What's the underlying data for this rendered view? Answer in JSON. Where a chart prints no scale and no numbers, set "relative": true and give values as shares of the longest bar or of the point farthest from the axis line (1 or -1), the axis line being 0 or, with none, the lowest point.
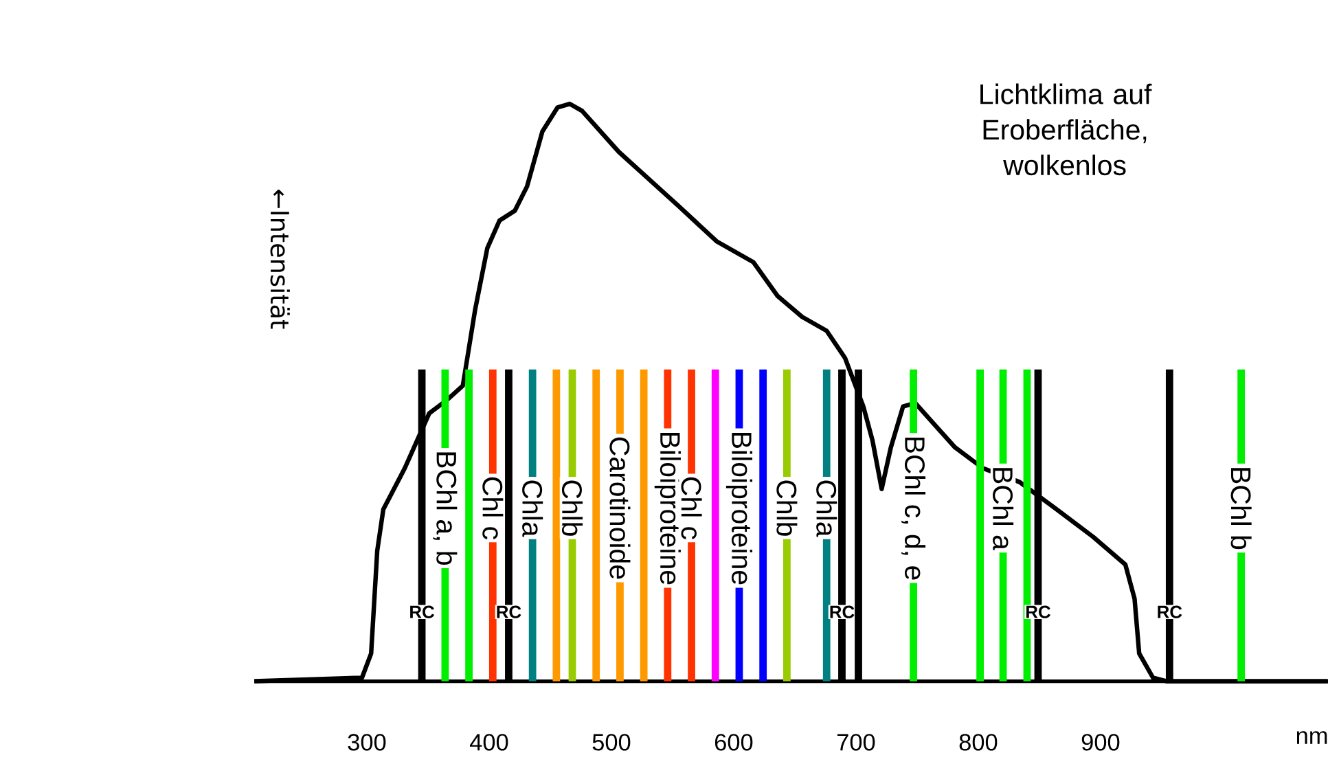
{
  "chart_data": {
    "type": "line",
    "relative": true,
    "title": "Lichtklima auf Eroberfläche, wolkenlos",
    "ylabel": "←Intensität",
    "xlabel": "nm",
    "xlim": [
      208,
      1086
    ],
    "xticks": [
      300,
      400,
      500,
      600,
      700,
      800,
      900
    ],
    "series": [
      {
        "color": "#000000",
        "x": [
          208,
          296,
          303.5,
          308.5,
          313.5,
          331,
          351,
          366,
          378.5,
          388.5,
          398.5,
          408.5,
          421,
          431,
          443.5,
          456,
          466,
          476,
          506,
          531,
          556,
          586,
          616,
          636,
          656,
          676,
          691,
          706,
          713.5,
          721,
          728.5,
          738.5,
          748.5,
          761,
          781,
          803.8,
          833.8,
          863.9,
          894,
          920.3,
          927.8,
          931.6,
          942.9,
          954.2,
          1085.8
        ],
        "values": [
          0,
          0.006,
          0.048,
          0.226,
          0.298,
          0.369,
          0.464,
          0.488,
          0.512,
          0.643,
          0.75,
          0.798,
          0.815,
          0.857,
          0.952,
          0.994,
          1.0,
          0.988,
          0.917,
          0.869,
          0.821,
          0.762,
          0.726,
          0.667,
          0.631,
          0.607,
          0.56,
          0.476,
          0.417,
          0.333,
          0.405,
          0.476,
          0.482,
          0.452,
          0.405,
          0.369,
          0.345,
          0.298,
          0.25,
          0.202,
          0.143,
          0.048,
          0.006,
          0,
          0
        ]
      }
    ],
    "ref_lines": [
      {
        "axis": "x",
        "value": 345,
        "label": "RC",
        "color": "#000000"
      },
      {
        "axis": "x",
        "value": 364,
        "label": "BChl a, b",
        "color": "#00ee00"
      },
      {
        "axis": "x",
        "value": 383.5,
        "color": "#00ee00"
      },
      {
        "axis": "x",
        "value": 403,
        "label": "Chl c",
        "color": "#ff3300"
      },
      {
        "axis": "x",
        "value": 416,
        "label": "RC",
        "color": "#000000"
      },
      {
        "axis": "x",
        "value": 435.5,
        "label": "Chla",
        "color": "#008080"
      },
      {
        "axis": "x",
        "value": 455,
        "color": "#ff9900"
      },
      {
        "axis": "x",
        "value": 468,
        "label": "Chlb",
        "color": "#99cc00"
      },
      {
        "axis": "x",
        "value": 487.5,
        "color": "#ff9900"
      },
      {
        "axis": "x",
        "value": 507,
        "label": "Carotinoide",
        "color": "#ff9900"
      },
      {
        "axis": "x",
        "value": 526.5,
        "color": "#ff9900"
      },
      {
        "axis": "x",
        "value": 546,
        "label": "Biloiproteine",
        "color": "#ff3300"
      },
      {
        "axis": "x",
        "value": 565.5,
        "label": "Chl c",
        "color": "#ff3300"
      },
      {
        "axis": "x",
        "value": 585,
        "color": "#ff00ff"
      },
      {
        "axis": "x",
        "value": 604.5,
        "label": "Biloiproteine",
        "color": "#0000ff"
      },
      {
        "axis": "x",
        "value": 624,
        "color": "#0000ff"
      },
      {
        "axis": "x",
        "value": 643.5,
        "label": "Chlb",
        "color": "#99cc00"
      },
      {
        "axis": "x",
        "value": 676,
        "label": "Chla",
        "color": "#008080"
      },
      {
        "axis": "x",
        "value": 688.5,
        "label": "RC",
        "color": "#000000"
      },
      {
        "axis": "x",
        "value": 702,
        "color": "#000000"
      },
      {
        "axis": "x",
        "value": 747,
        "label": "BChl c, d, e",
        "color": "#00ee00"
      },
      {
        "axis": "x",
        "value": 801.5,
        "color": "#00ee00"
      },
      {
        "axis": "x",
        "value": 820.3,
        "label": "BChl a",
        "color": "#00ee00"
      },
      {
        "axis": "x",
        "value": 839.9,
        "color": "#00ee00"
      },
      {
        "axis": "x",
        "value": 848.9,
        "label": "RC",
        "color": "#000000"
      },
      {
        "axis": "x",
        "value": 956.4,
        "label": "RC",
        "color": "#000000"
      },
      {
        "axis": "x",
        "value": 1015,
        "label": "BChl b",
        "color": "#00ee00"
      }
    ]
  }
}
